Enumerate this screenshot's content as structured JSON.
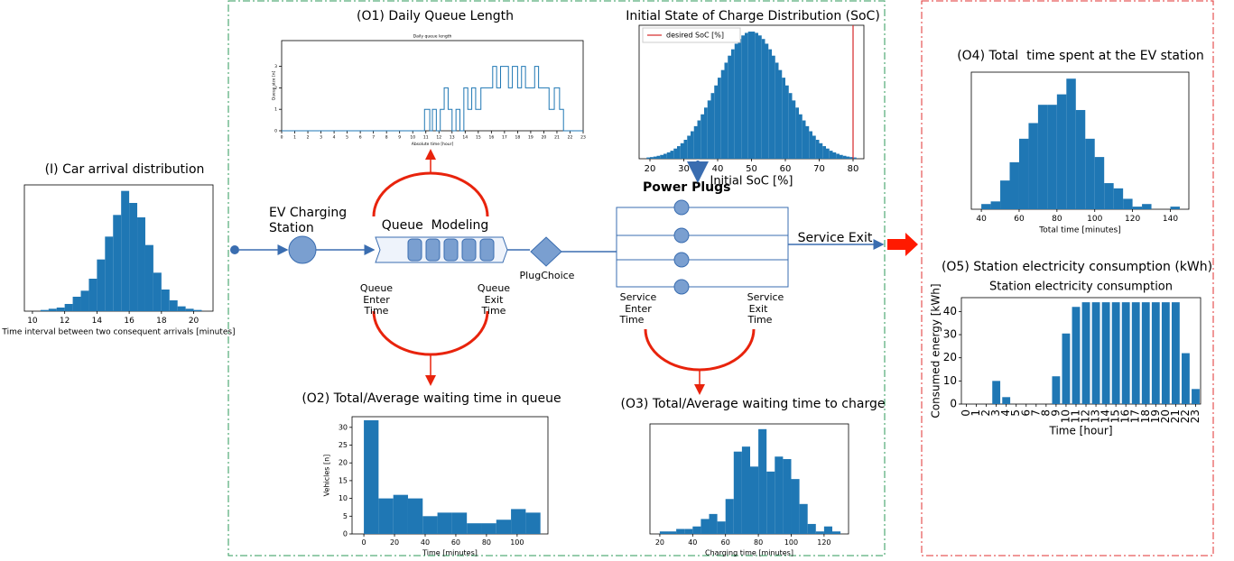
{
  "diagram": {
    "arrival_caption": "(I) Car arrival distribution",
    "o1_caption": "(O1) Daily Queue Length",
    "soc_caption": "Initial State of Charge Distribution (SoC)",
    "o4_caption": "(O4) Total  time spent at the EV station",
    "o5_caption": "(O5) Station electricity consumption (kWh)",
    "o2_caption": "(O2) Total/Average waiting time in queue",
    "o3_caption": "(O3) Total/Average waiting time to charge",
    "station_label": [
      "EV Charging",
      "Station"
    ],
    "queue_modeling": "Queue  Modeling",
    "plug_choice": "PlugChoice",
    "power_plugs": "Power Plugs",
    "service_exit": "Service Exit",
    "queue_enter": [
      "Queue",
      "Enter",
      "Time"
    ],
    "queue_exit": [
      "Queue",
      "Exit",
      "Time"
    ],
    "service_enter": [
      "Service",
      "Enter",
      "Time"
    ],
    "service_exit_time": [
      "Service",
      "Exit",
      "Time"
    ]
  },
  "charts": {
    "arrival": {
      "type": "histogram",
      "color": "#1f77b4",
      "xlabel": "Time interval between two consequent arrivals [minutes]",
      "bins": [
        10.5,
        11,
        11.5,
        12,
        12.5,
        13,
        13.5,
        14,
        14.5,
        15,
        15.5,
        16,
        16.5,
        17,
        17.5,
        18,
        18.5,
        19,
        19.5,
        20,
        20.5
      ],
      "counts": [
        1,
        2,
        3,
        6,
        12,
        17,
        27,
        43,
        62,
        80,
        100,
        90,
        78,
        55,
        32,
        18,
        9,
        4,
        2,
        1
      ],
      "xlim": [
        9.5,
        21.2
      ],
      "xticks": [
        10,
        12,
        14,
        16,
        18,
        20
      ]
    },
    "queue": {
      "type": "step",
      "color": "#1f77b4",
      "title": "Daily queue length",
      "xlabel": "Absolute time [hour]",
      "ylabel": "Queue size [n]",
      "x": [
        0,
        10.9,
        11.3,
        11.5,
        11.8,
        12.1,
        12.4,
        12.7,
        13.0,
        13.3,
        13.6,
        13.9,
        14.2,
        14.5,
        14.8,
        15.2,
        15.5,
        15.8,
        16.1,
        16.4,
        16.7,
        17.0,
        17.3,
        17.6,
        18.0,
        18.3,
        18.6,
        19.0,
        19.3,
        19.6,
        20.0,
        20.4,
        20.8,
        21.2,
        21.5,
        23
      ],
      "y": [
        0,
        1,
        0,
        1,
        0,
        1,
        2,
        1,
        0,
        1,
        0,
        2,
        1,
        2,
        1,
        2,
        2,
        2,
        3,
        2,
        3,
        3,
        2,
        3,
        2,
        3,
        2,
        2,
        3,
        2,
        2,
        1,
        2,
        1,
        0,
        0
      ],
      "xlim": [
        0,
        23
      ],
      "ylim": [
        0,
        4.2
      ],
      "xticks": [
        0,
        1,
        2,
        3,
        4,
        5,
        6,
        7,
        8,
        9,
        10,
        11,
        12,
        13,
        14,
        15,
        16,
        17,
        18,
        19,
        20,
        21,
        22,
        23
      ],
      "yticks": [
        0,
        1,
        2,
        3
      ]
    },
    "soc": {
      "type": "histogram",
      "color": "#1f77b4",
      "xlabel": "Initial SoC [%]",
      "legend": "desired SoC [%]",
      "desired_soc": 80,
      "desired_color": "#d62728",
      "bins": [
        19,
        20,
        21,
        22,
        23,
        24,
        25,
        26,
        27,
        28,
        29,
        30,
        31,
        32,
        33,
        34,
        35,
        36,
        37,
        38,
        39,
        40,
        41,
        42,
        43,
        44,
        45,
        46,
        47,
        48,
        49,
        50,
        51,
        52,
        53,
        54,
        55,
        56,
        57,
        58,
        59,
        60,
        61,
        62,
        63,
        64,
        65,
        66,
        67,
        68,
        69,
        70,
        71,
        72,
        73,
        74,
        75,
        76,
        77,
        78,
        79,
        80,
        81
      ],
      "counts": [
        10,
        13,
        17,
        23,
        30,
        39,
        50,
        63,
        80,
        99,
        122,
        149,
        181,
        216,
        256,
        301,
        349,
        402,
        458,
        516,
        576,
        637,
        697,
        755,
        810,
        860,
        904,
        941,
        969,
        989,
        999,
        999,
        989,
        969,
        941,
        904,
        860,
        810,
        755,
        697,
        637,
        576,
        516,
        458,
        402,
        349,
        301,
        256,
        216,
        181,
        149,
        122,
        99,
        80,
        63,
        50,
        39,
        30,
        23,
        17,
        13,
        10
      ],
      "xlim": [
        16.8,
        83.2
      ],
      "xticks": [
        20,
        30,
        40,
        50,
        60,
        70,
        80
      ]
    },
    "total": {
      "type": "histogram",
      "color": "#1f77b4",
      "xlabel": "Total time [minutes]",
      "bins": [
        40,
        45,
        50,
        55,
        60,
        65,
        70,
        75,
        80,
        85,
        90,
        95,
        100,
        105,
        110,
        115,
        120,
        125,
        130,
        135,
        140,
        145
      ],
      "counts": [
        2,
        3,
        11,
        18,
        27,
        33,
        40,
        40,
        44,
        50,
        38,
        27,
        20,
        10,
        8,
        4,
        1,
        2,
        0,
        0,
        1
      ],
      "xlim": [
        34.7,
        149.8
      ],
      "xticks": [
        40,
        60,
        80,
        100,
        120,
        140
      ]
    },
    "energy": {
      "type": "bar",
      "color": "#1f77b4",
      "title": "Station electricity consumption",
      "xlabel": "Time [hour]",
      "ylabel": "Consumed energy [kWh]",
      "categories": [
        "0",
        "1",
        "2",
        "3",
        "4",
        "5",
        "6",
        "7",
        "8",
        "9",
        "10",
        "11",
        "12",
        "13",
        "14",
        "15",
        "16",
        "17",
        "18",
        "19",
        "20",
        "21",
        "22",
        "23"
      ],
      "values": [
        0,
        0,
        0,
        10,
        3,
        0,
        0,
        0,
        0,
        12,
        30.5,
        42,
        44,
        44,
        44,
        44,
        44,
        44,
        44,
        44,
        44,
        44,
        22,
        6.5
      ],
      "ylim": [
        0,
        46
      ],
      "yticks": [
        0,
        10,
        20,
        30,
        40
      ]
    },
    "wait": {
      "type": "histogram",
      "color": "#1f77b4",
      "xlabel": "Time [minutes]",
      "ylabel": "Vehicles [n]",
      "bins": [
        0,
        9.6,
        19.2,
        28.8,
        38.4,
        48,
        57.6,
        67.2,
        76.8,
        86.4,
        96,
        105.6,
        115.2
      ],
      "counts": [
        32,
        10,
        11,
        10,
        5,
        6,
        6,
        3,
        3,
        4,
        7,
        6
      ],
      "xlim": [
        -7.7,
        120.1
      ],
      "ylim": [
        0,
        33
      ],
      "xticks": [
        0,
        20,
        40,
        60,
        80,
        100
      ],
      "yticks": [
        0,
        5,
        10,
        15,
        20,
        25,
        30
      ]
    },
    "charge": {
      "type": "histogram",
      "color": "#1f77b4",
      "xlabel": "Charging time [minutes]",
      "bins": [
        20,
        25,
        30,
        35,
        40,
        45,
        50,
        55,
        60,
        65,
        70,
        75,
        80,
        85,
        90,
        95,
        100,
        105,
        110,
        115,
        120,
        125,
        130
      ],
      "counts": [
        1,
        1,
        2,
        2,
        3,
        6,
        8,
        5,
        14,
        33,
        35,
        27,
        42,
        25,
        31,
        30,
        22,
        12,
        4,
        1,
        3,
        1
      ],
      "xlim": [
        14,
        134.9
      ],
      "xticks": [
        20,
        40,
        60,
        80,
        100,
        120
      ]
    }
  }
}
